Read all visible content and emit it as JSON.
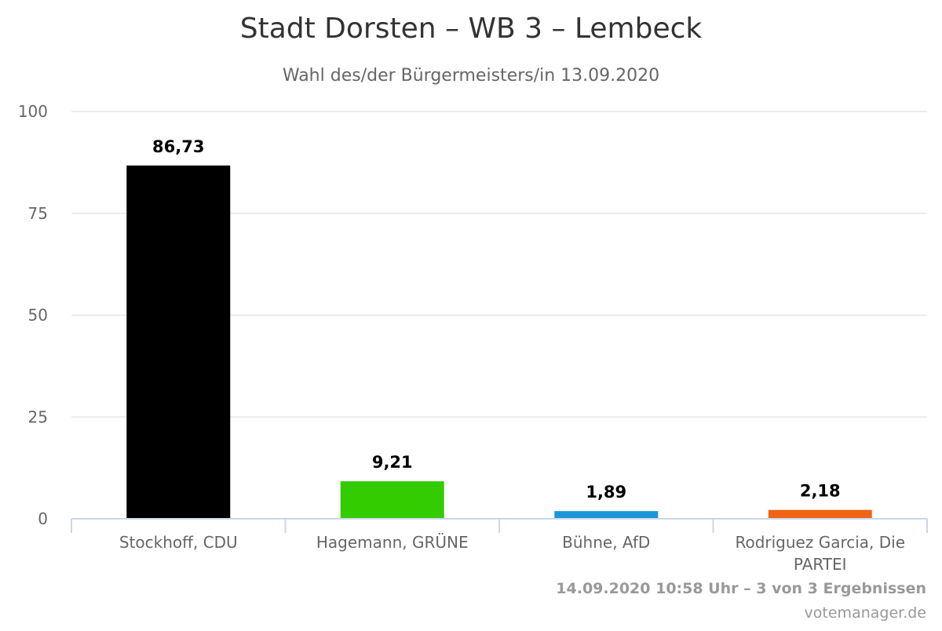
{
  "chart_data": {
    "type": "bar",
    "title": "Stadt Dorsten – WB 3 – Lembeck",
    "subtitle": "Wahl des/der Bürgermeisters/in 13.09.2020",
    "categories": [
      "Stockhoff, CDU",
      "Hagemann, GRÜNE",
      "Bühne, AfD",
      "Rodriguez Garcia, Die PARTEI"
    ],
    "category_lines": [
      [
        "Stockhoff, CDU"
      ],
      [
        "Hagemann, GRÜNE"
      ],
      [
        "Bühne, AfD"
      ],
      [
        "Rodriguez Garcia, Die",
        "PARTEI"
      ]
    ],
    "values": [
      86.73,
      9.21,
      1.89,
      2.18
    ],
    "data_labels": [
      "86,73",
      "9,21",
      "1,89",
      "2,18"
    ],
    "colors": [
      "#000000",
      "#33cc00",
      "#1a96d9",
      "#f06414"
    ],
    "ylim": [
      0,
      100
    ],
    "yticks": [
      0,
      25,
      50,
      75,
      100
    ],
    "grid": true,
    "legend": "none"
  },
  "credits": {
    "line1": "14.09.2020 10:58 Uhr – 3 von 3 Ergebnissen",
    "line2": "votemanager.de"
  }
}
